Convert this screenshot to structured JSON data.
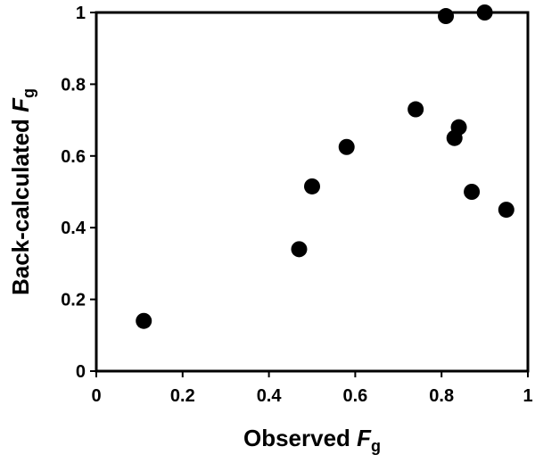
{
  "chart_data": {
    "type": "scatter",
    "xlabel": {
      "text": "Observed ",
      "var": "F",
      "sub": "g"
    },
    "ylabel": {
      "text": "Back-calculated ",
      "var": "F",
      "sub": "g"
    },
    "x": [
      0.11,
      0.47,
      0.5,
      0.58,
      0.74,
      0.81,
      0.9,
      0.83,
      0.84,
      0.87,
      0.95
    ],
    "values": [
      0.14,
      0.34,
      0.515,
      0.625,
      0.73,
      0.99,
      1.0,
      0.65,
      0.68,
      0.5,
      0.45
    ],
    "color": "#000000",
    "xlim": [
      0,
      1
    ],
    "xticks": [
      0,
      0.2,
      0.4,
      0.6,
      0.8,
      1
    ],
    "ylim": [
      0,
      1
    ],
    "yticks": [
      0,
      0.2,
      0.4,
      0.6,
      0.8,
      1
    ]
  }
}
